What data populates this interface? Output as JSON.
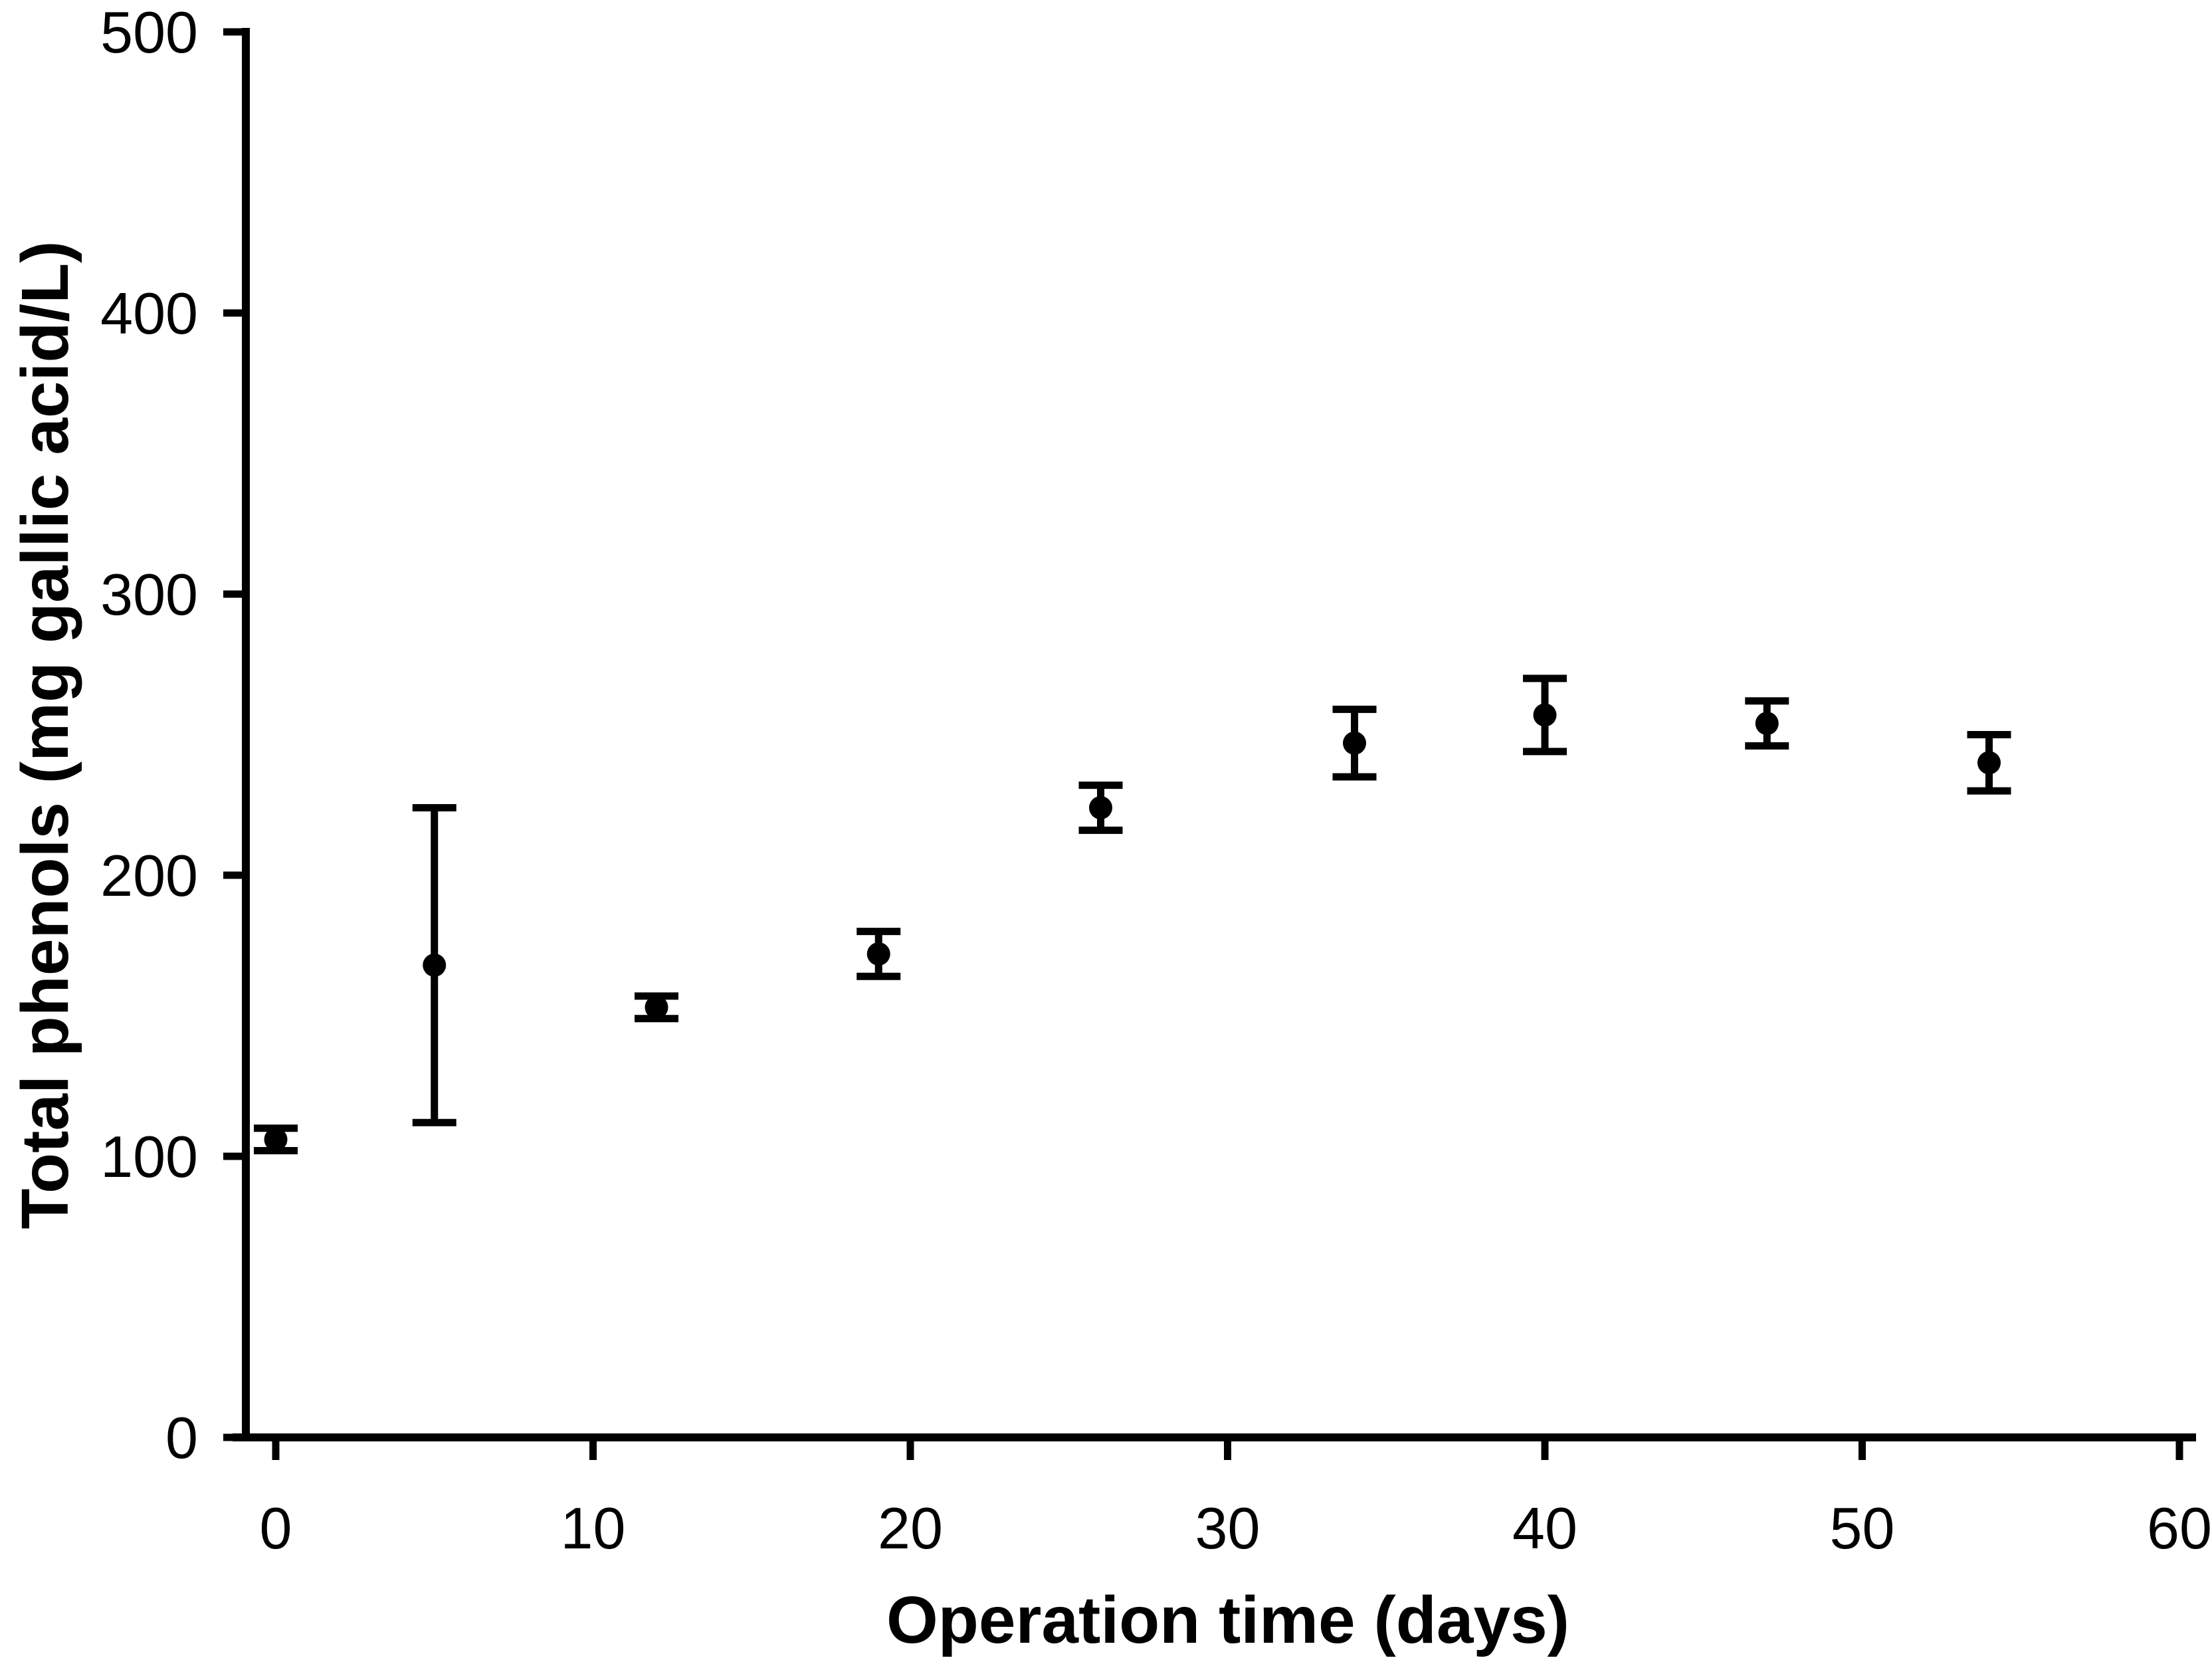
{
  "chart_data": {
    "type": "scatter",
    "title": "",
    "xlabel": "Operation time (days)",
    "ylabel": "Total phenols (mg gallic acid/L)",
    "xlim": [
      0,
      60
    ],
    "ylim": [
      0,
      500
    ],
    "x_ticks": [
      0,
      10,
      20,
      30,
      40,
      50,
      60
    ],
    "y_ticks": [
      0,
      100,
      200,
      300,
      400,
      500
    ],
    "grid": false,
    "legend_position": "none",
    "marker": "filled-circle",
    "marker_color": "#000000",
    "axis_color": "#000000",
    "error_bars": "vertical-with-caps",
    "series": [
      {
        "name": "Total phenols",
        "x": [
          0,
          5,
          12,
          19,
          26,
          34,
          40,
          47,
          54
        ],
        "y": [
          106,
          168,
          153,
          172,
          224,
          247,
          257,
          254,
          240
        ],
        "y_err": [
          4,
          56,
          4,
          8,
          8,
          12,
          13,
          8,
          10
        ]
      }
    ]
  }
}
